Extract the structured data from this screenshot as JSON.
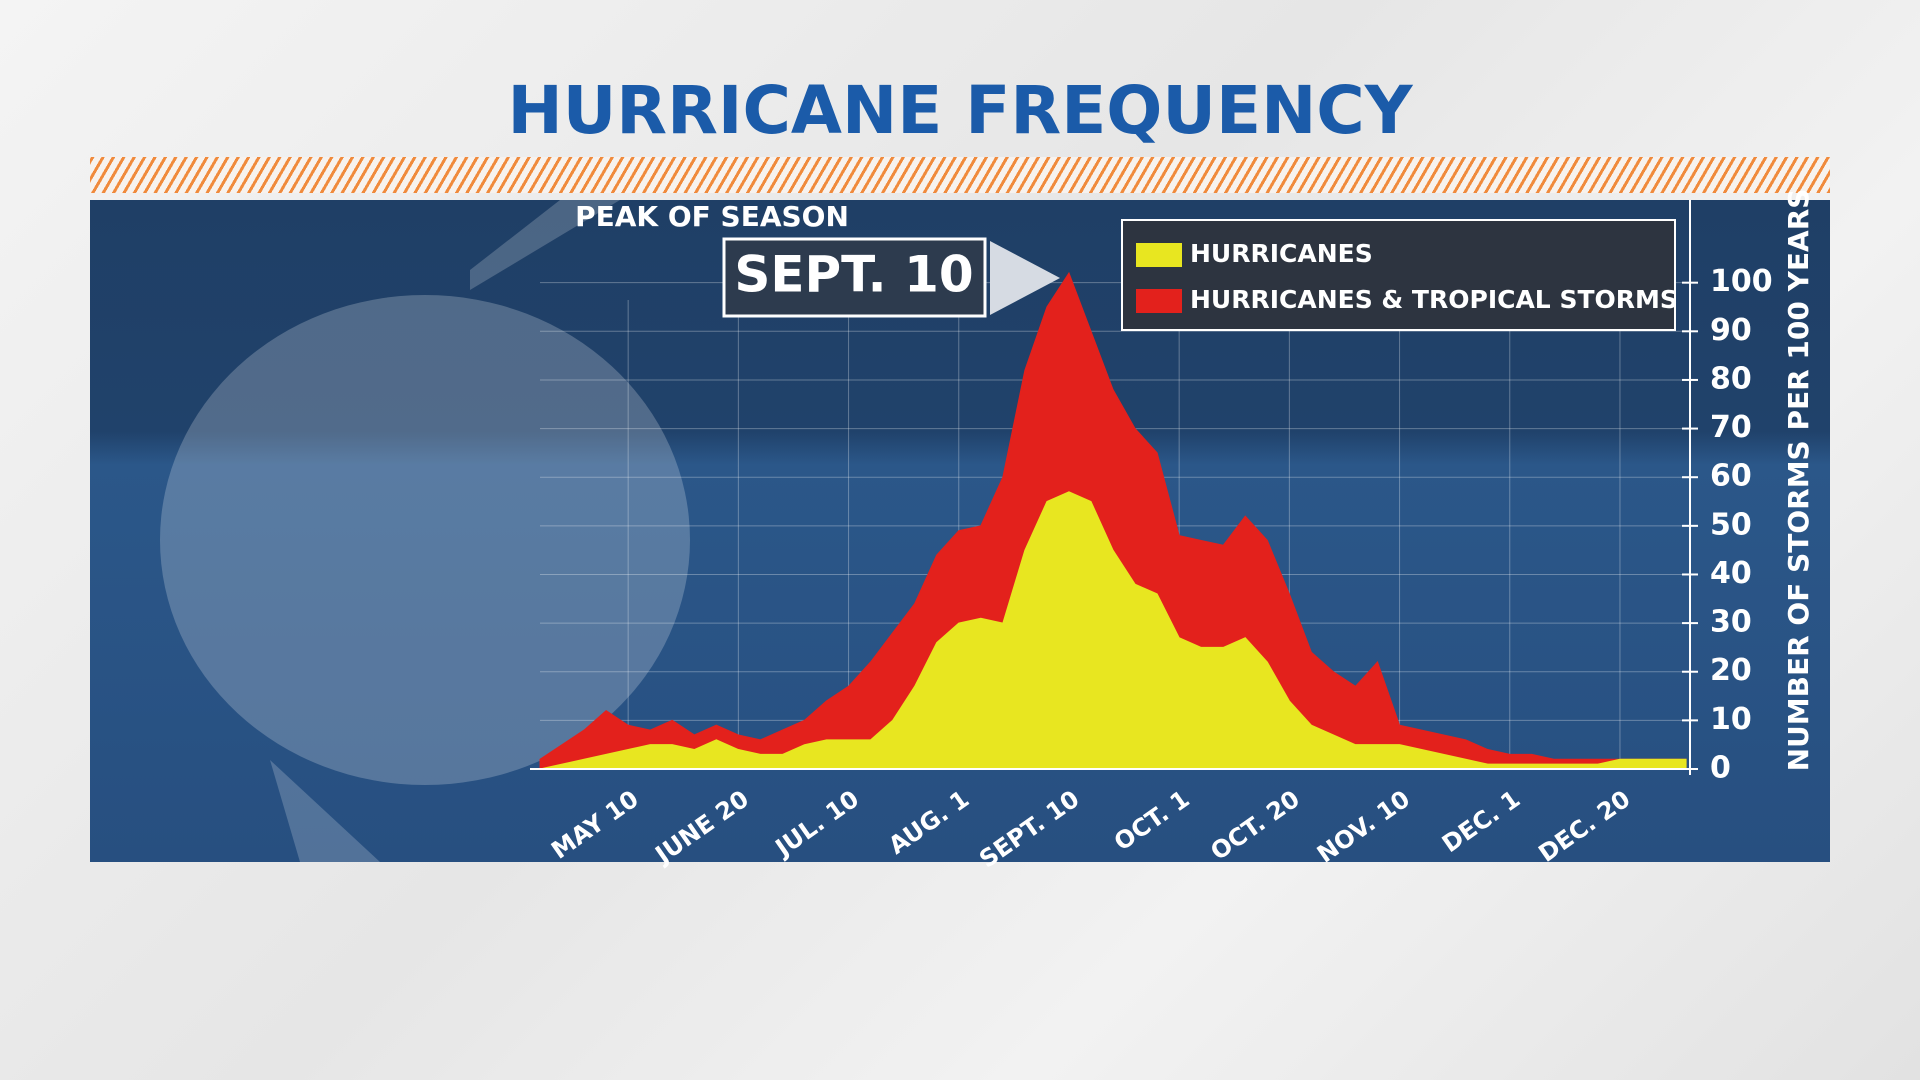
{
  "chart_data": {
    "type": "area",
    "title": "HURRICANE FREQUENCY",
    "annotation_heading": "PEAK OF SEASON",
    "annotation_value": "SEPT. 10",
    "y_label": "NUMBER OF STORMS PER 100 YEARS",
    "categories": [
      null,
      null,
      null,
      null,
      "MAY 10",
      null,
      null,
      null,
      null,
      "JUNE 20",
      null,
      null,
      null,
      null,
      "JUL. 10",
      null,
      null,
      null,
      null,
      "AUG. 1",
      null,
      null,
      null,
      null,
      "SEPT. 10",
      null,
      null,
      null,
      null,
      "OCT. 1",
      null,
      null,
      null,
      null,
      "OCT. 20",
      null,
      null,
      null,
      null,
      "NOV. 10",
      null,
      null,
      null,
      null,
      "DEC. 1",
      null,
      null,
      null,
      null,
      "DEC. 20",
      null,
      null,
      null
    ],
    "series": [
      {
        "name": "HURRICANES & TROPICAL STORMS",
        "color": "#e3211c",
        "values": [
          2,
          5,
          8,
          12,
          9,
          8,
          10,
          7,
          9,
          7,
          6,
          8,
          10,
          14,
          17,
          22,
          28,
          34,
          44,
          49,
          50,
          60,
          82,
          95,
          102,
          90,
          78,
          70,
          65,
          48,
          47,
          46,
          52,
          47,
          36,
          24,
          20,
          17,
          22,
          9,
          8,
          7,
          6,
          4,
          3,
          3,
          2,
          2,
          2,
          2,
          2,
          2,
          2
        ]
      },
      {
        "name": "HURRICANES",
        "color": "#e8e620",
        "values": [
          0,
          1,
          2,
          3,
          4,
          5,
          5,
          4,
          6,
          4,
          3,
          3,
          5,
          6,
          6,
          6,
          10,
          17,
          26,
          30,
          31,
          30,
          45,
          55,
          57,
          55,
          45,
          38,
          36,
          27,
          25,
          25,
          27,
          22,
          14,
          9,
          7,
          5,
          5,
          5,
          4,
          3,
          2,
          1,
          1,
          1,
          1,
          1,
          1,
          2,
          2,
          2,
          2
        ]
      }
    ],
    "ylim": [
      0,
      117
    ],
    "yticks": [
      0,
      10,
      20,
      30,
      40,
      50,
      60,
      70,
      80,
      90,
      100
    ],
    "grid": true
  }
}
